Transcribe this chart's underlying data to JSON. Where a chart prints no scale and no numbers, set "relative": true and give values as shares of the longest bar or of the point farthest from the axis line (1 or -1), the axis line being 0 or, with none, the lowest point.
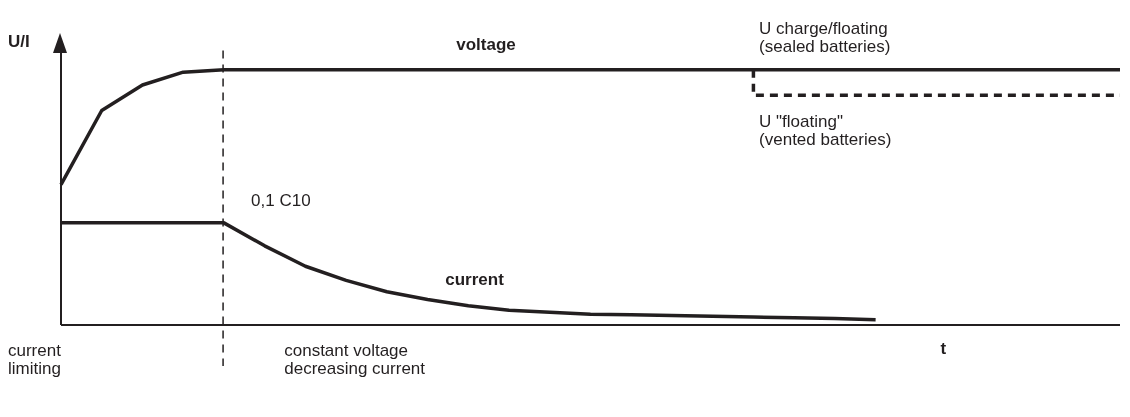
{
  "chart_data": {
    "type": "line",
    "relative": true,
    "legend": false,
    "grid": false,
    "marker": "none",
    "xlabel": "t",
    "ylabel": "U/I",
    "categories": [
      null,
      null,
      null,
      null,
      null,
      null,
      null,
      null,
      null,
      null,
      null,
      null,
      null,
      null,
      null,
      null,
      null,
      null,
      null,
      null,
      null,
      null,
      null,
      null,
      null,
      null,
      null
    ],
    "series": [
      {
        "name": "voltage",
        "color": "#231f20",
        "line_style": "solid",
        "values": [
          0.55,
          0.84,
          0.94,
          0.99,
          1,
          1,
          1,
          1,
          1,
          1,
          1,
          1,
          1,
          1,
          1,
          1,
          1,
          1,
          1,
          1,
          1,
          1,
          1,
          1,
          1,
          1,
          1
        ]
      },
      {
        "name": "U \"floating\"\n(vented batteries)",
        "type": "step",
        "color": "#231f20",
        "line_style": "dashed",
        "values": [
          null,
          null,
          null,
          null,
          null,
          null,
          null,
          null,
          null,
          null,
          null,
          null,
          null,
          null,
          null,
          null,
          null,
          1,
          0.9,
          0.9,
          0.9,
          0.9,
          0.9,
          0.9,
          0.9,
          0.9,
          0.9
        ]
      },
      {
        "name": "current",
        "color": "#231f20",
        "line_style": "solid",
        "values": [
          0.4,
          0.4,
          0.4,
          0.4,
          0.4,
          0.31,
          0.23,
          0.175,
          0.13,
          0.1,
          0.075,
          0.058,
          0.05,
          0.042,
          0.04,
          0.037,
          0.034,
          0.031,
          0.028,
          0.025,
          0.021,
          null,
          null,
          null,
          null,
          null,
          null
        ]
      }
    ],
    "annotations": [
      "0,1 C10",
      "U charge/floating\n(sealed batteries)",
      "current\nlimiting",
      "constant voltage\ndecreasing current"
    ]
  }
}
